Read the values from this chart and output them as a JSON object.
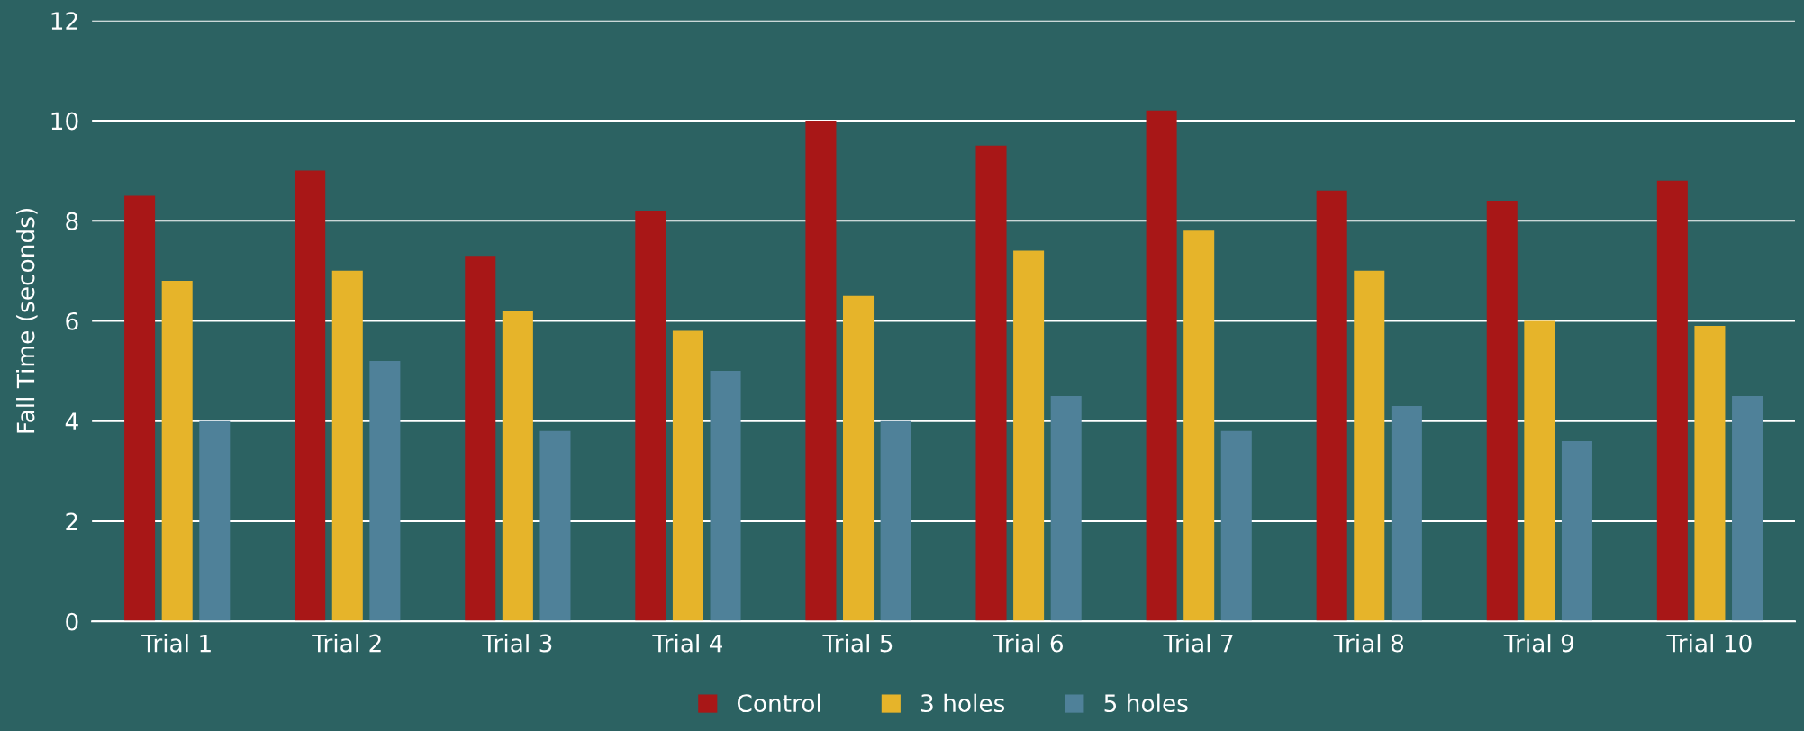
{
  "chart_data": {
    "type": "bar",
    "ylabel": "Fall Time (seconds)",
    "categories": [
      "Trial 1",
      "Trial 2",
      "Trial 3",
      "Trial 4",
      "Trial 5",
      "Trial 6",
      "Trial 7",
      "Trial 8",
      "Trial 9",
      "Trial 10"
    ],
    "series": [
      {
        "name": "Control",
        "color": "#a81717",
        "values": [
          8.5,
          9.0,
          7.3,
          8.2,
          10.0,
          9.5,
          10.2,
          8.6,
          8.4,
          8.8
        ]
      },
      {
        "name": "3 holes",
        "color": "#e6b42a",
        "values": [
          6.8,
          7.0,
          6.2,
          5.8,
          6.5,
          7.4,
          7.8,
          7.0,
          6.0,
          5.9
        ]
      },
      {
        "name": "5 holes",
        "color": "#4f8199",
        "values": [
          4.0,
          5.2,
          3.8,
          5.0,
          4.0,
          4.5,
          3.8,
          4.3,
          3.6,
          4.5
        ]
      }
    ],
    "ylim": [
      0,
      12
    ],
    "yticks": [
      0,
      2,
      4,
      6,
      8,
      10,
      12
    ],
    "grid": "y",
    "legend": "bottom"
  }
}
